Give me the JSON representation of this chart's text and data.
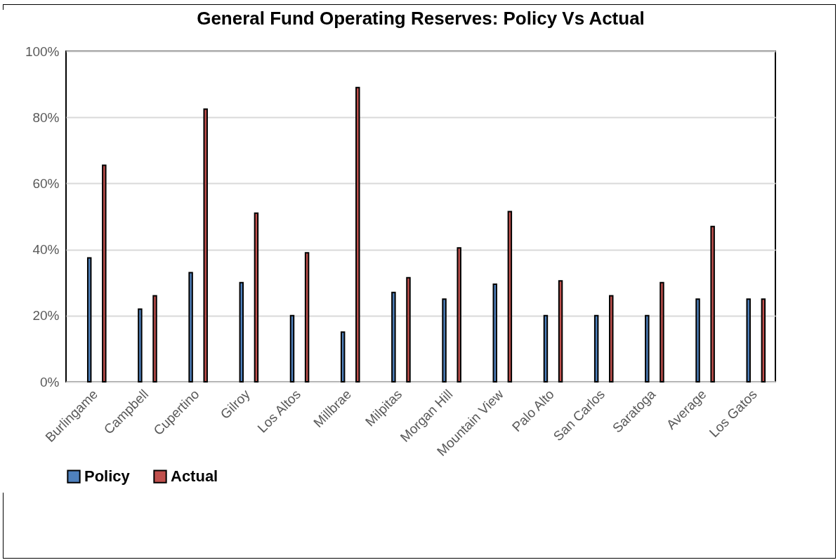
{
  "chart_data": {
    "type": "bar",
    "title": "General Fund Operating Reserves: Policy Vs Actual",
    "categories": [
      "Burlingame",
      "Campbell",
      "Cupertino",
      "Gilroy",
      "Los Altos",
      "Millbrae",
      "Milpitas",
      "Morgan Hill",
      "Mountain View",
      "Palo Alto",
      "San Carlos",
      "Saratoga",
      "Average",
      "Los Gatos"
    ],
    "series": [
      {
        "name": "Policy",
        "color": "#4f81bd",
        "values": [
          37.5,
          22,
          33,
          30,
          20,
          15,
          27,
          25,
          29.5,
          20,
          20,
          20,
          25,
          25
        ]
      },
      {
        "name": "Actual",
        "color": "#c0504d",
        "values": [
          65.5,
          26,
          82.5,
          51,
          39,
          89,
          31.5,
          40.5,
          51.5,
          30.5,
          26,
          30,
          47,
          25
        ]
      }
    ],
    "ylim": [
      0,
      100
    ],
    "yticks": [
      {
        "value": 0,
        "label": "0%"
      },
      {
        "value": 20,
        "label": "20%"
      },
      {
        "value": 40,
        "label": "40%"
      },
      {
        "value": 60,
        "label": "60%"
      },
      {
        "value": 80,
        "label": "80%"
      },
      {
        "value": 100,
        "label": "100%"
      }
    ],
    "grid": "y",
    "legend": "bottom"
  }
}
